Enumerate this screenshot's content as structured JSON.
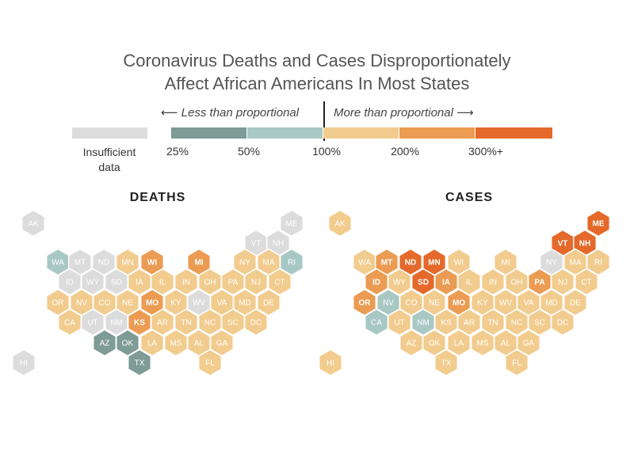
{
  "title_line1": "Coronavirus Deaths and Cases Disproportionately",
  "title_line2": "Affect African Americans In Most States",
  "legend": {
    "less_label": "⟵ Less than proportional",
    "more_label": "More than proportional ⟶",
    "insufficient_label_line1": "Insufficient",
    "insufficient_label_line2": "data",
    "ticks": [
      "25%",
      "50%",
      "100%",
      "200%",
      "300%+"
    ],
    "colors": {
      "na": "#dcdcdc",
      "c1": "#7e9b96",
      "c2": "#a8c8c4",
      "c3": "#f2cc8e",
      "c4": "#eb9c52",
      "c5": "#e4692a"
    }
  },
  "panels": [
    {
      "title": "DEATHS",
      "states": [
        {
          "code": "AK",
          "cat": "na"
        },
        {
          "code": "ME",
          "cat": "na"
        },
        {
          "code": "VT",
          "cat": "na"
        },
        {
          "code": "NH",
          "cat": "na"
        },
        {
          "code": "WA",
          "cat": "c2"
        },
        {
          "code": "MT",
          "cat": "na"
        },
        {
          "code": "ND",
          "cat": "na"
        },
        {
          "code": "MN",
          "cat": "c3"
        },
        {
          "code": "WI",
          "cat": "c4"
        },
        {
          "code": "MI",
          "cat": "c4"
        },
        {
          "code": "NY",
          "cat": "c3"
        },
        {
          "code": "MA",
          "cat": "c3"
        },
        {
          "code": "RI",
          "cat": "c2"
        },
        {
          "code": "ID",
          "cat": "na"
        },
        {
          "code": "WY",
          "cat": "na"
        },
        {
          "code": "SD",
          "cat": "na"
        },
        {
          "code": "IA",
          "cat": "c3"
        },
        {
          "code": "IL",
          "cat": "c3"
        },
        {
          "code": "IN",
          "cat": "c3"
        },
        {
          "code": "OH",
          "cat": "c3"
        },
        {
          "code": "PA",
          "cat": "c3"
        },
        {
          "code": "NJ",
          "cat": "c3"
        },
        {
          "code": "CT",
          "cat": "c3"
        },
        {
          "code": "OR",
          "cat": "c3"
        },
        {
          "code": "NV",
          "cat": "c3"
        },
        {
          "code": "CO",
          "cat": "c3"
        },
        {
          "code": "NE",
          "cat": "c3"
        },
        {
          "code": "MO",
          "cat": "c4"
        },
        {
          "code": "KY",
          "cat": "c3"
        },
        {
          "code": "WV",
          "cat": "na"
        },
        {
          "code": "VA",
          "cat": "c3"
        },
        {
          "code": "MD",
          "cat": "c3"
        },
        {
          "code": "DE",
          "cat": "c3"
        },
        {
          "code": "CA",
          "cat": "c3"
        },
        {
          "code": "UT",
          "cat": "na"
        },
        {
          "code": "NM",
          "cat": "na"
        },
        {
          "code": "KS",
          "cat": "c4"
        },
        {
          "code": "AR",
          "cat": "c3"
        },
        {
          "code": "TN",
          "cat": "c3"
        },
        {
          "code": "NC",
          "cat": "c3"
        },
        {
          "code": "SC",
          "cat": "c3"
        },
        {
          "code": "DC",
          "cat": "c3"
        },
        {
          "code": "AZ",
          "cat": "c1"
        },
        {
          "code": "OK",
          "cat": "c1"
        },
        {
          "code": "LA",
          "cat": "c3"
        },
        {
          "code": "MS",
          "cat": "c3"
        },
        {
          "code": "AL",
          "cat": "c3"
        },
        {
          "code": "GA",
          "cat": "c3"
        },
        {
          "code": "HI",
          "cat": "na"
        },
        {
          "code": "TX",
          "cat": "c1"
        },
        {
          "code": "FL",
          "cat": "c3"
        }
      ]
    },
    {
      "title": "CASES",
      "states": [
        {
          "code": "AK",
          "cat": "c3"
        },
        {
          "code": "ME",
          "cat": "c5"
        },
        {
          "code": "VT",
          "cat": "c5"
        },
        {
          "code": "NH",
          "cat": "c5"
        },
        {
          "code": "WA",
          "cat": "c3"
        },
        {
          "code": "MT",
          "cat": "c4"
        },
        {
          "code": "ND",
          "cat": "c5"
        },
        {
          "code": "MN",
          "cat": "c5"
        },
        {
          "code": "WI",
          "cat": "c3"
        },
        {
          "code": "MI",
          "cat": "c3"
        },
        {
          "code": "NY",
          "cat": "na"
        },
        {
          "code": "MA",
          "cat": "c3"
        },
        {
          "code": "RI",
          "cat": "c3"
        },
        {
          "code": "ID",
          "cat": "c4"
        },
        {
          "code": "WY",
          "cat": "c3"
        },
        {
          "code": "SD",
          "cat": "c5"
        },
        {
          "code": "IA",
          "cat": "c4"
        },
        {
          "code": "IL",
          "cat": "c3"
        },
        {
          "code": "IN",
          "cat": "c3"
        },
        {
          "code": "OH",
          "cat": "c3"
        },
        {
          "code": "PA",
          "cat": "c4"
        },
        {
          "code": "NJ",
          "cat": "c3"
        },
        {
          "code": "CT",
          "cat": "c3"
        },
        {
          "code": "OR",
          "cat": "c4"
        },
        {
          "code": "NV",
          "cat": "c2"
        },
        {
          "code": "CO",
          "cat": "c3"
        },
        {
          "code": "NE",
          "cat": "c3"
        },
        {
          "code": "MO",
          "cat": "c4"
        },
        {
          "code": "KY",
          "cat": "c3"
        },
        {
          "code": "WV",
          "cat": "c3"
        },
        {
          "code": "VA",
          "cat": "c3"
        },
        {
          "code": "MD",
          "cat": "c3"
        },
        {
          "code": "DE",
          "cat": "c3"
        },
        {
          "code": "CA",
          "cat": "c2"
        },
        {
          "code": "UT",
          "cat": "c3"
        },
        {
          "code": "NM",
          "cat": "c2"
        },
        {
          "code": "KS",
          "cat": "c3"
        },
        {
          "code": "AR",
          "cat": "c3"
        },
        {
          "code": "TN",
          "cat": "c3"
        },
        {
          "code": "NC",
          "cat": "c3"
        },
        {
          "code": "SC",
          "cat": "c3"
        },
        {
          "code": "DC",
          "cat": "c3"
        },
        {
          "code": "AZ",
          "cat": "c3"
        },
        {
          "code": "OK",
          "cat": "c3"
        },
        {
          "code": "LA",
          "cat": "c3"
        },
        {
          "code": "MS",
          "cat": "c3"
        },
        {
          "code": "AL",
          "cat": "c3"
        },
        {
          "code": "GA",
          "cat": "c3"
        },
        {
          "code": "HI",
          "cat": "c3"
        },
        {
          "code": "TX",
          "cat": "c3"
        },
        {
          "code": "FL",
          "cat": "c3"
        }
      ]
    }
  ]
}
